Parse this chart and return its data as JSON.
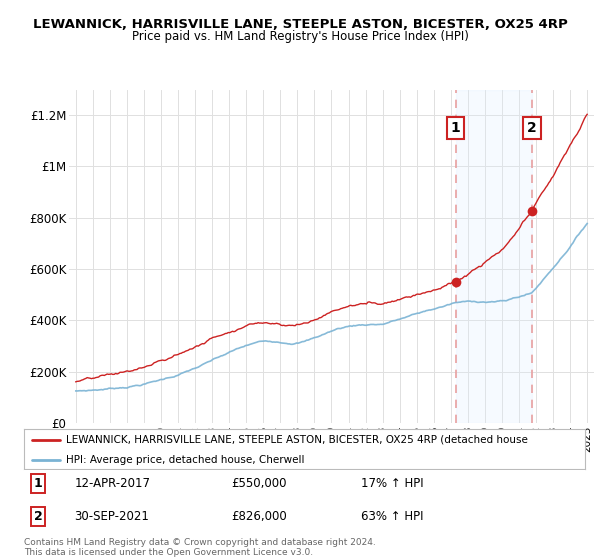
{
  "title": "LEWANNICK, HARRISVILLE LANE, STEEPLE ASTON, BICESTER, OX25 4RP",
  "subtitle": "Price paid vs. HM Land Registry's House Price Index (HPI)",
  "legend_line1": "LEWANNICK, HARRISVILLE LANE, STEEPLE ASTON, BICESTER, OX25 4RP (detached house",
  "legend_line2": "HPI: Average price, detached house, Cherwell",
  "annotation1_date": "12-APR-2017",
  "annotation1_price": 550000,
  "annotation1_text": "17% ↑ HPI",
  "annotation2_date": "30-SEP-2021",
  "annotation2_price": 826000,
  "annotation2_text": "63% ↑ HPI",
  "footer": "Contains HM Land Registry data © Crown copyright and database right 2024.\nThis data is licensed under the Open Government Licence v3.0.",
  "hpi_color": "#7ab3d4",
  "price_color": "#cc2222",
  "annotation_color": "#cc2222",
  "vline_color": "#e8a0a0",
  "shade_color": "#ddeeff",
  "background_color": "#ffffff",
  "grid_color": "#e0e0e0",
  "ylim": [
    0,
    1300000
  ],
  "yticks": [
    0,
    200000,
    400000,
    600000,
    800000,
    1000000,
    1200000
  ],
  "ytick_labels": [
    "£0",
    "£200K",
    "£400K",
    "£600K",
    "£800K",
    "£1M",
    "£1.2M"
  ],
  "sale1_year": 2017.28,
  "sale2_year": 2021.75
}
